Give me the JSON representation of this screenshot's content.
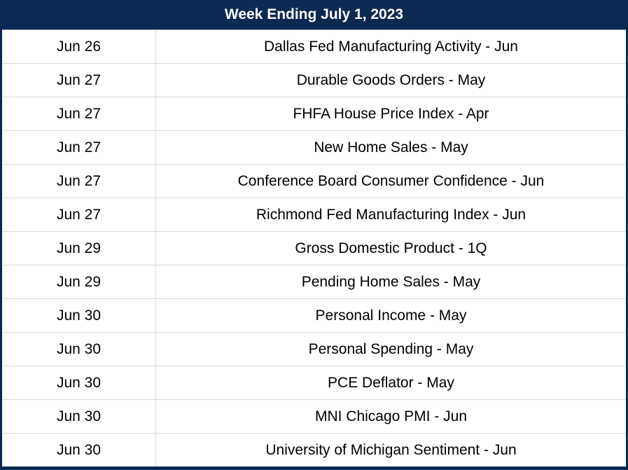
{
  "header": {
    "title": "Week Ending July 1, 2023"
  },
  "table": {
    "columns": [
      "date",
      "event"
    ],
    "rows": [
      {
        "date": "Jun 26",
        "event": "Dallas Fed Manufacturing Activity - Jun"
      },
      {
        "date": "Jun 27",
        "event": "Durable Goods Orders - May"
      },
      {
        "date": "Jun 27",
        "event": "FHFA House Price Index - Apr"
      },
      {
        "date": "Jun 27",
        "event": "New Home Sales - May"
      },
      {
        "date": "Jun 27",
        "event": "Conference Board Consumer Confidence - Jun"
      },
      {
        "date": "Jun 27",
        "event": "Richmond Fed Manufacturing Index - Jun"
      },
      {
        "date": "Jun 29",
        "event": "Gross Domestic Product - 1Q"
      },
      {
        "date": "Jun 29",
        "event": "Pending Home Sales - May"
      },
      {
        "date": "Jun 30",
        "event": "Personal Income - May"
      },
      {
        "date": "Jun 30",
        "event": "Personal Spending - May"
      },
      {
        "date": "Jun 30",
        "event": "PCE Deflator - May"
      },
      {
        "date": "Jun 30",
        "event": "MNI Chicago PMI - Jun"
      },
      {
        "date": "Jun 30",
        "event": "University of Michigan Sentiment - Jun"
      }
    ]
  },
  "colors": {
    "navy": "#0b2a52",
    "row_divider": "#d9d9d9",
    "header_underline": "#a3a3a3",
    "text": "#000000",
    "header_text": "#ffffff",
    "bg": "#ffffff"
  }
}
